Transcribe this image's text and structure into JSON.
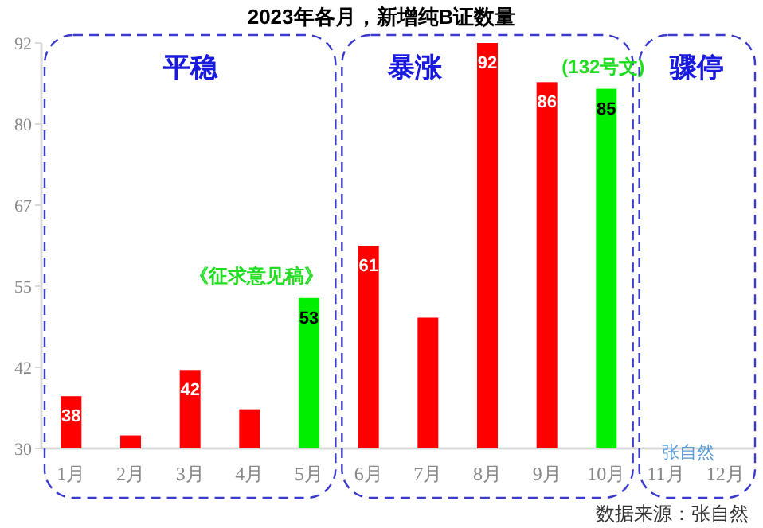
{
  "chart_data": {
    "type": "bar",
    "title": "2023年各月，新增纯B证数量",
    "categories": [
      "1月",
      "2月",
      "3月",
      "4月",
      "5月",
      "6月",
      "7月",
      "8月",
      "9月",
      "10月",
      "11月",
      "12月"
    ],
    "values": [
      38,
      32,
      42,
      36,
      53,
      61,
      50,
      92,
      86,
      85,
      null,
      null
    ],
    "colors": [
      "#ff0000",
      "#ff0000",
      "#ff0000",
      "#ff0000",
      "#00ee00",
      "#ff0000",
      "#ff0000",
      "#ff0000",
      "#ff0000",
      "#00ee00",
      null,
      null
    ],
    "value_labels": [
      "38",
      null,
      "42",
      null,
      "53",
      "61",
      null,
      "92",
      "86",
      "85",
      null,
      null
    ],
    "ylim": [
      30,
      92
    ],
    "yticks": [
      30,
      {
        "value": 42.4,
        "label": "42"
      },
      {
        "value": 54.8,
        "label": "55"
      },
      {
        "value": 67.2,
        "label": "67"
      },
      {
        "value": 79.6,
        "label": "80"
      },
      92
    ],
    "annotations": [
      "平稳",
      "暴涨",
      "骤停",
      "张自然",
      "数据来源：张自然",
      {
        "text": "《征求意见稿》",
        "x": "5月",
        "y": 53
      },
      {
        "text": "(132号文)",
        "x": "10月",
        "y": 85
      }
    ]
  }
}
